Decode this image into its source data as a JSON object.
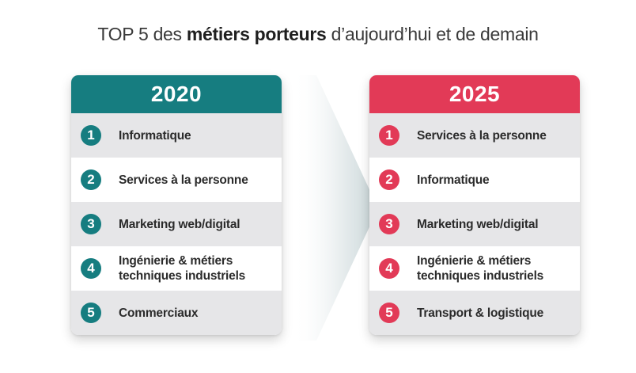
{
  "title": {
    "prefix": "TOP 5 des ",
    "emphasis": "métiers porteurs",
    "suffix": " d’aujourd’hui et de demain"
  },
  "colors": {
    "teal": "#167d80",
    "pink": "#e23a57",
    "row_alt": "#e6e6e8"
  },
  "left": {
    "year": "2020",
    "items": [
      {
        "rank": "1",
        "lines": [
          "Informatique"
        ]
      },
      {
        "rank": "2",
        "lines": [
          "Services à la personne"
        ]
      },
      {
        "rank": "3",
        "lines": [
          "Marketing web/digital"
        ]
      },
      {
        "rank": "4",
        "lines": [
          "Ingénierie & métiers",
          "techniques industriels"
        ]
      },
      {
        "rank": "5",
        "lines": [
          "Commerciaux"
        ]
      }
    ]
  },
  "right": {
    "year": "2025",
    "items": [
      {
        "rank": "1",
        "lines": [
          "Services à la personne"
        ]
      },
      {
        "rank": "2",
        "lines": [
          "Informatique"
        ]
      },
      {
        "rank": "3",
        "lines": [
          "Marketing web/digital"
        ]
      },
      {
        "rank": "4",
        "lines": [
          "Ingénierie & métiers",
          "techniques industriels"
        ]
      },
      {
        "rank": "5",
        "lines": [
          "Transport & logistique"
        ]
      }
    ]
  }
}
